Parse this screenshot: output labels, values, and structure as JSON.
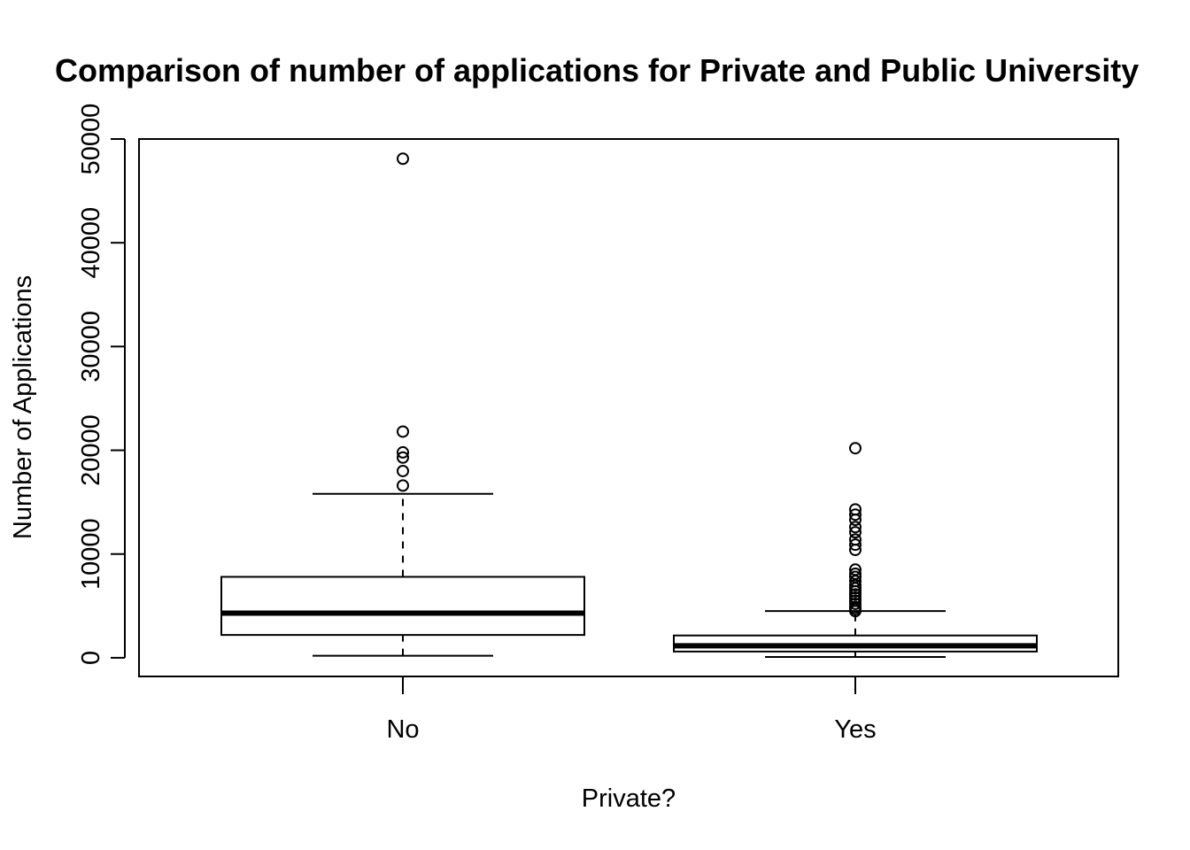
{
  "chart_data": {
    "type": "boxplot",
    "title": "Comparison of number of applications for Private and Public University",
    "xlabel": "Private?",
    "ylabel": "Number of Applications",
    "ylim": [
      -1800,
      50000
    ],
    "yticks": [
      0,
      10000,
      20000,
      30000,
      40000,
      50000
    ],
    "grid": false,
    "categories": [
      "No",
      "Yes"
    ],
    "boxes": [
      {
        "category": "No",
        "whisker_low": 200,
        "q1": 2200,
        "median": 4300,
        "q3": 7800,
        "whisker_high": 15800,
        "outliers": [
          16600,
          18000,
          19300,
          19800,
          21800,
          48100
        ]
      },
      {
        "category": "Yes",
        "whisker_low": 80,
        "q1": 600,
        "median": 1150,
        "q3": 2150,
        "whisker_high": 4500,
        "outliers": [
          4500,
          4700,
          4900,
          5200,
          5500,
          5800,
          6100,
          6400,
          6700,
          7000,
          7400,
          7800,
          8100,
          8500,
          10400,
          10900,
          11400,
          12100,
          12600,
          13300,
          13800,
          14300,
          20200
        ]
      }
    ]
  }
}
